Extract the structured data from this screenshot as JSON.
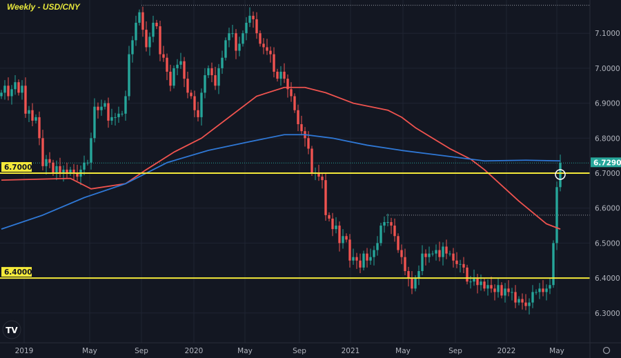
{
  "chart_data": {
    "type": "candlestick",
    "title": "Weekly - USD/CNY",
    "interval": "Weekly",
    "symbol": "USD/CNY",
    "ylim": [
      6.25,
      7.19
    ],
    "y_ticks": [
      "7.1000",
      "7.0000",
      "6.9000",
      "6.8000",
      "6.7000",
      "6.6000",
      "6.5000",
      "6.4000",
      "6.3000"
    ],
    "x_ticks": [
      "2019",
      "May",
      "Sep",
      "2020",
      "May",
      "Sep",
      "2021",
      "May",
      "Sep",
      "2022",
      "May"
    ],
    "grid": true,
    "closes": [
      6.93,
      6.95,
      6.92,
      6.94,
      6.96,
      6.93,
      6.95,
      6.87,
      6.88,
      6.85,
      6.86,
      6.8,
      6.72,
      6.74,
      6.73,
      6.7,
      6.72,
      6.7,
      6.71,
      6.7,
      6.71,
      6.7,
      6.69,
      6.71,
      6.73,
      6.73,
      6.8,
      6.89,
      6.88,
      6.89,
      6.9,
      6.85,
      6.86,
      6.86,
      6.87,
      6.87,
      6.92,
      7.04,
      7.08,
      7.13,
      7.16,
      7.11,
      7.06,
      7.09,
      7.13,
      7.12,
      7.04,
      7.03,
      6.99,
      6.95,
      7.0,
      7.01,
      7.02,
      6.97,
      6.93,
      6.92,
      6.88,
      6.86,
      6.93,
      6.98,
      7.0,
      6.98,
      6.95,
      7.0,
      7.03,
      7.08,
      7.1,
      7.1,
      7.05,
      7.07,
      7.1,
      7.13,
      7.15,
      7.14,
      7.1,
      7.07,
      7.06,
      7.05,
      7.04,
      6.99,
      6.97,
      6.99,
      6.97,
      6.94,
      6.92,
      6.88,
      6.84,
      6.82,
      6.8,
      6.77,
      6.7,
      6.7,
      6.69,
      6.68,
      6.58,
      6.57,
      6.54,
      6.55,
      6.5,
      6.52,
      6.51,
      6.45,
      6.46,
      6.45,
      6.43,
      6.47,
      6.45,
      6.46,
      6.48,
      6.5,
      6.55,
      6.56,
      6.56,
      6.55,
      6.52,
      6.48,
      6.46,
      6.42,
      6.4,
      6.37,
      6.4,
      6.42,
      6.47,
      6.46,
      6.47,
      6.47,
      6.48,
      6.46,
      6.49,
      6.47,
      6.47,
      6.45,
      6.44,
      6.44,
      6.43,
      6.39,
      6.39,
      6.4,
      6.38,
      6.39,
      6.37,
      6.38,
      6.37,
      6.36,
      6.38,
      6.35,
      6.37,
      6.36,
      6.36,
      6.33,
      6.34,
      6.33,
      6.32,
      6.33,
      6.36,
      6.36,
      6.37,
      6.36,
      6.37,
      6.38,
      6.5,
      6.66,
      6.729
    ],
    "moving_averages": [
      {
        "color": "#f0534f",
        "points": [
          [
            0,
            6.68
          ],
          [
            20,
            6.685
          ],
          [
            26,
            6.655
          ],
          [
            36,
            6.67
          ],
          [
            42,
            6.71
          ],
          [
            50,
            6.76
          ],
          [
            58,
            6.8
          ],
          [
            66,
            6.86
          ],
          [
            74,
            6.92
          ],
          [
            82,
            6.945
          ],
          [
            88,
            6.945
          ],
          [
            94,
            6.93
          ],
          [
            102,
            6.9
          ],
          [
            112,
            6.88
          ],
          [
            116,
            6.86
          ],
          [
            120,
            6.83
          ],
          [
            130,
            6.77
          ],
          [
            136,
            6.74
          ],
          [
            140,
            6.71
          ],
          [
            150,
            6.62
          ],
          [
            158,
            6.555
          ],
          [
            162,
            6.54
          ]
        ]
      },
      {
        "color": "#2f78d6",
        "points": [
          [
            0,
            6.54
          ],
          [
            12,
            6.58
          ],
          [
            24,
            6.63
          ],
          [
            36,
            6.67
          ],
          [
            48,
            6.73
          ],
          [
            60,
            6.765
          ],
          [
            72,
            6.79
          ],
          [
            82,
            6.81
          ],
          [
            88,
            6.81
          ],
          [
            96,
            6.8
          ],
          [
            106,
            6.78
          ],
          [
            116,
            6.765
          ],
          [
            128,
            6.75
          ],
          [
            140,
            6.735
          ],
          [
            152,
            6.737
          ],
          [
            162,
            6.735
          ]
        ]
      }
    ],
    "horizontal_levels": [
      {
        "value": 6.7,
        "label": "6.7000",
        "color": "#f5ea3a"
      },
      {
        "value": 6.4,
        "label": "6.4000",
        "color": "#f5ea3a"
      }
    ],
    "last_price": {
      "value": 6.729,
      "label": "6.7290",
      "color": "#26a69a"
    },
    "dotted_highs": [
      7.18,
      6.58
    ],
    "colors": {
      "up": "#26a69a",
      "down": "#ef5350",
      "background": "#131722"
    }
  }
}
